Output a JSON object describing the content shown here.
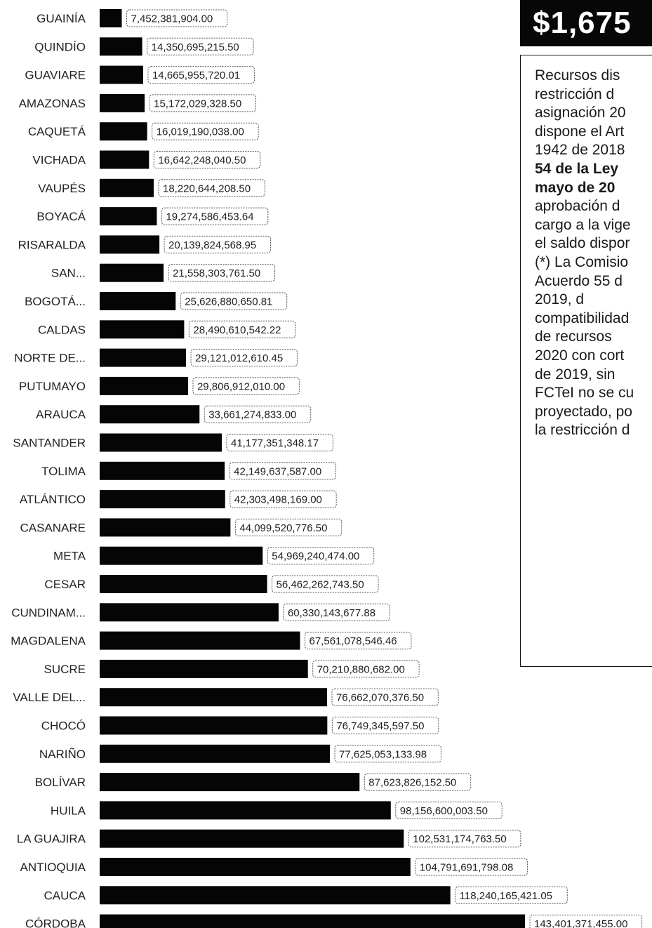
{
  "chart_data": {
    "type": "bar",
    "orientation": "horizontal",
    "categories": [
      "GUAINÍA",
      "QUINDÍO",
      "GUAVIARE",
      "AMAZONAS",
      "CAQUETÁ",
      "VICHADA",
      "VAUPÉS",
      "BOYACÁ",
      "RISARALDA",
      "SAN...",
      "BOGOTÁ...",
      "CALDAS",
      "NORTE DE...",
      "PUTUMAYO",
      "ARAUCA",
      "SANTANDER",
      "TOLIMA",
      "ATLÁNTICO",
      "CASANARE",
      "META",
      "CESAR",
      "CUNDINAM...",
      "MAGDALENA",
      "SUCRE",
      "VALLE DEL...",
      "CHOCÓ",
      "NARIÑO",
      "BOLÍVAR",
      "HUILA",
      "LA GUAJIRA",
      "ANTIOQUIA",
      "CAUCA",
      "CÓRDOBA"
    ],
    "values": [
      7452381904.0,
      14350695215.5,
      14665955720.01,
      15172029328.5,
      16019190038.0,
      16642248040.5,
      18220644208.5,
      19274586453.64,
      20139824568.95,
      21558303761.5,
      25626880650.81,
      28490610542.22,
      29121012610.45,
      29806912010.0,
      33661274833.0,
      41177351348.17,
      42149637587.0,
      42303498169.0,
      44099520776.5,
      54969240474.0,
      56462262743.5,
      60330143677.88,
      67561078546.46,
      70210880682.0,
      76662070376.5,
      76749345597.5,
      77625053133.98,
      87623826152.5,
      98156600003.5,
      102531174763.5,
      104791691798.08,
      118240165421.05,
      143401371455.0
    ],
    "value_labels": [
      "7,452,381,904.00",
      "14,350,695,215.50",
      "14,665,955,720.01",
      "15,172,029,328.50",
      "16,019,190,038.00",
      "16,642,248,040.50",
      "18,220,644,208.50",
      "19,274,586,453.64",
      "20,139,824,568.95",
      "21,558,303,761.50",
      "25,626,880,650.81",
      "28,490,610,542.22",
      "29,121,012,610.45",
      "29,806,912,010.00",
      "33,661,274,833.00",
      "41,177,351,348.17",
      "42,149,637,587.00",
      "42,303,498,169.00",
      "44,099,520,776.50",
      "54,969,240,474.00",
      "56,462,262,743.50",
      "60,330,143,677.88",
      "67,561,078,546.46",
      "70,210,880,682.00",
      "76,662,070,376.50",
      "76,749,345,597.50",
      "77,625,053,133.98",
      "87,623,826,152.50",
      "98,156,600,003.50",
      "102,531,174,763.50",
      "104,791,691,798.08",
      "118,240,165,421.05",
      "143,401,371,455.00"
    ],
    "bar_color": "#050505",
    "xlim": [
      0,
      143401371455.0
    ],
    "grid": false,
    "legend": "none"
  },
  "summary_panel": {
    "total": "$1,675",
    "note_lines": [
      {
        "text": "Recursos dis",
        "bold": false
      },
      {
        "text": "restricción    d",
        "bold": false
      },
      {
        "text": "asignación 20",
        "bold": false
      },
      {
        "text": "dispone el Art",
        "bold": false
      },
      {
        "text": "1942 de 2018",
        "bold": false
      },
      {
        "text": "54 de la Ley",
        "bold": true
      },
      {
        "text": "mayo de 20",
        "bold": true
      },
      {
        "text": "aprobación  d",
        "bold": false
      },
      {
        "text": "cargo a la vige",
        "bold": false
      },
      {
        "text": "el saldo dispor",
        "bold": false
      },
      {
        "text": "(*) La Comisio",
        "bold": false
      },
      {
        "text": "Acuerdo 55 d",
        "bold": false
      },
      {
        "text": "2019,           d",
        "bold": false
      },
      {
        "text": "compatibilidad",
        "bold": false
      },
      {
        "text": "de  recursos",
        "bold": false
      },
      {
        "text": "2020 con cort",
        "bold": false
      },
      {
        "text": "de 2019, sin",
        "bold": false
      },
      {
        "text": "FCTeI no se cu",
        "bold": false
      },
      {
        "text": "proyectado, po",
        "bold": false
      },
      {
        "text": "la restricción d",
        "bold": false
      }
    ]
  }
}
